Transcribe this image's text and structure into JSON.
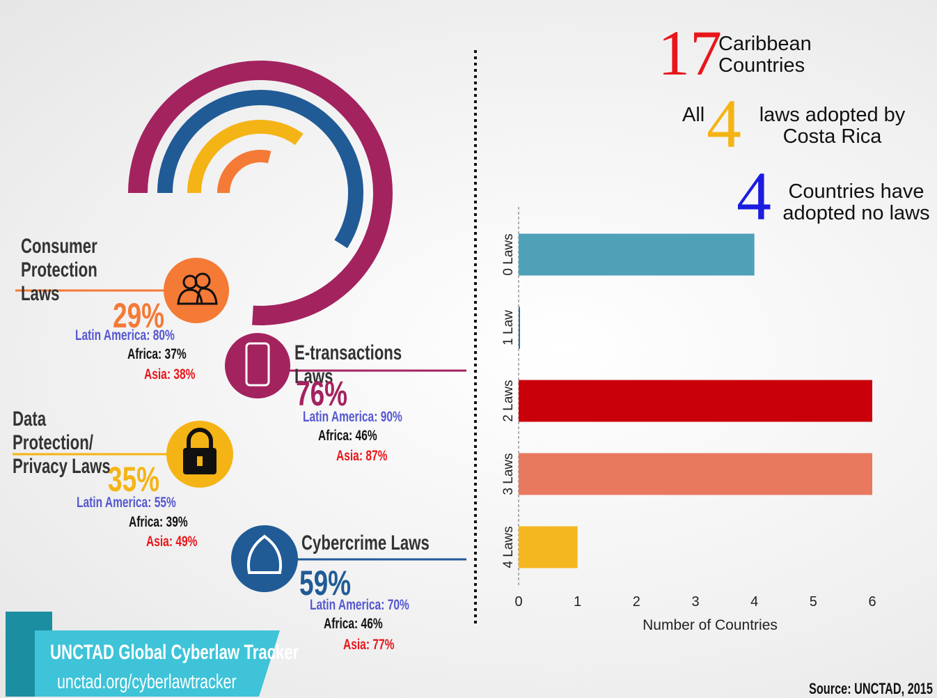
{
  "headline": {
    "count": "17",
    "count_label": "Caribbean Countries",
    "all_prefix": "All",
    "all_count": "4",
    "all_label": "laws adopted by Costa Rica",
    "none_count": "4",
    "none_label": "Countries have adopted no laws"
  },
  "chart_data": [
    {
      "type": "radial",
      "categories": [
        "Consumer Protection Laws",
        "E-transactions Laws",
        "Data Protection/ Privacy Laws",
        "Cybercrime Laws"
      ],
      "values": [
        29,
        76,
        35,
        59
      ],
      "value_labels": [
        "29%",
        "76%",
        "35%",
        "59%"
      ],
      "colors": [
        "#f47a36",
        "#a3235f",
        "#f5b415",
        "#205b96"
      ],
      "comparisons": [
        {
          "name": "Latin America:",
          "color": "#5558d0",
          "values": [
            80,
            90,
            55,
            70
          ],
          "value_labels": [
            "80%",
            "90%",
            "55%",
            "70%"
          ]
        },
        {
          "name": "Africa:",
          "color": "#111111",
          "values": [
            37,
            46,
            39,
            46
          ],
          "value_labels": [
            "37%",
            "46%",
            "39%",
            "46%"
          ]
        },
        {
          "name": "Asia:",
          "color": "#e8161b",
          "values": [
            38,
            87,
            49,
            77
          ],
          "value_labels": [
            "38%",
            "87%",
            "49%",
            "77%"
          ]
        }
      ]
    },
    {
      "type": "hbar",
      "categories": [
        "0 Laws",
        "1 Law",
        "2 Laws",
        "3 Laws",
        "4 Laws"
      ],
      "values": [
        4,
        0,
        6,
        6,
        1
      ],
      "colors": [
        "#4fa1b8",
        "#2f6f9a",
        "#c9000a",
        "#e8785e",
        "#f5b720"
      ],
      "xlim": [
        0,
        6
      ],
      "xticks": [
        0,
        1,
        2,
        3,
        4,
        5,
        6
      ],
      "xlabel": "Number of Countries"
    }
  ],
  "footer": {
    "brand": "UNCTAD Global Cyberlaw Tracker",
    "url": "unctad.org/cyberlawtracker",
    "source": "Source: UNCTAD, 2015"
  }
}
